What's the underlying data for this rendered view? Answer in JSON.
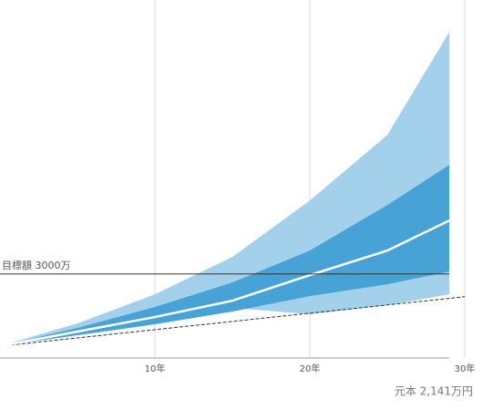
{
  "chart_data": {
    "type": "band",
    "x": [
      0,
      5,
      10,
      15,
      20,
      25,
      29
    ],
    "xlim": [
      0,
      30
    ],
    "xticks": [
      {
        "value": 10,
        "label": "10年"
      },
      {
        "value": 20,
        "label": "20年"
      },
      {
        "value": 30,
        "label": "30年"
      }
    ],
    "ylim": [
      0,
      13000
    ],
    "grid": true,
    "bands": [
      {
        "color": "#a3d0ea",
        "upper": [
          275,
          1134,
          2233,
          3642,
          5772,
          8246,
          12130
        ],
        "lower": [
          275,
          790,
          1306,
          1718,
          1477,
          1821,
          2233
        ]
      },
      {
        "color": "#47a3d6",
        "upper": [
          275,
          962,
          1752,
          2680,
          3883,
          5600,
          7113
        ],
        "lower": [
          275,
          687,
          1100,
          1581,
          2165,
          2611,
          3092
        ]
      }
    ],
    "median": {
      "color": "#ffffff",
      "values": [
        275,
        825,
        1374,
        1993,
        2955,
        3883,
        5016
      ]
    },
    "principal": {
      "color": "#333333",
      "x": [
        0,
        30
      ],
      "values": [
        275,
        2141
      ],
      "label": "元本 2,141万円"
    },
    "target": {
      "value": 3000,
      "label": "目標額 3000万"
    }
  }
}
